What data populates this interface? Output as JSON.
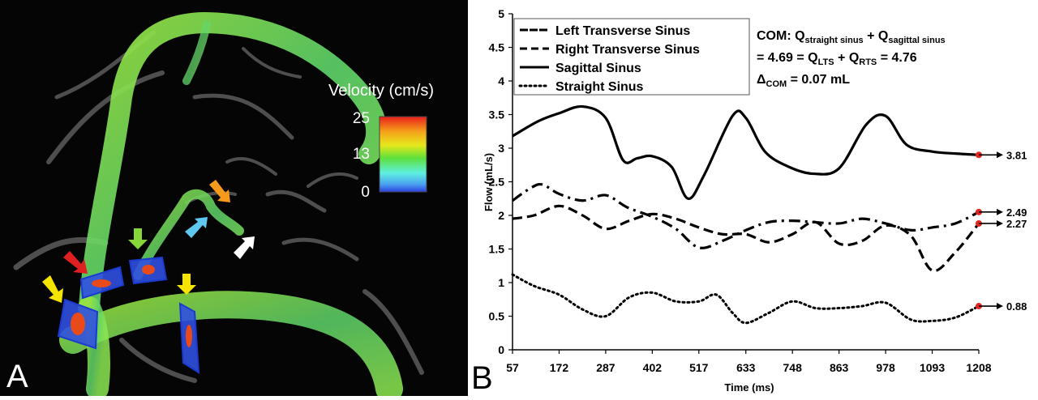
{
  "panel_a": {
    "label": "A",
    "legend_title": "Velocity (cm/s)",
    "legend_ticks": [
      "25",
      "13",
      "0"
    ],
    "arrow_colors": [
      "#f5e400",
      "#e02020",
      "#86d63a",
      "#5ec8f0",
      "#f59a1a",
      "#ffffff"
    ]
  },
  "panel_b": {
    "label": "B"
  },
  "chart_data": {
    "type": "line",
    "xlabel": "Time (ms)",
    "ylabel": "Flow (mL/s)",
    "ylim": [
      0,
      5
    ],
    "yticks": [
      "0",
      "0.5",
      "1",
      "1.5",
      "2",
      "2.5",
      "3",
      "3.5",
      "4",
      "4.5",
      "5"
    ],
    "x": [
      57,
      172,
      287,
      402,
      517,
      633,
      748,
      863,
      978,
      1093,
      1208
    ],
    "xtick_labels": [
      "57",
      "172",
      "287",
      "402",
      "517",
      "633",
      "748",
      "863",
      "978",
      "1093",
      "1208"
    ],
    "legend_placement": "top-left",
    "grid": false,
    "series": [
      {
        "name": "Left Transverse Sinus",
        "dash": "dashdot",
        "points": [
          [
            57,
            2.22
          ],
          [
            100,
            2.4
          ],
          [
            130,
            2.46
          ],
          [
            172,
            2.32
          ],
          [
            230,
            2.22
          ],
          [
            287,
            2.3
          ],
          [
            340,
            2.12
          ],
          [
            402,
            1.98
          ],
          [
            460,
            1.8
          ],
          [
            517,
            1.52
          ],
          [
            575,
            1.62
          ],
          [
            633,
            1.78
          ],
          [
            690,
            1.9
          ],
          [
            748,
            1.92
          ],
          [
            800,
            1.9
          ],
          [
            863,
            1.88
          ],
          [
            920,
            1.95
          ],
          [
            978,
            1.88
          ],
          [
            1040,
            1.78
          ],
          [
            1093,
            1.82
          ],
          [
            1150,
            1.88
          ],
          [
            1208,
            2.05
          ]
        ],
        "end_value": "2.49"
      },
      {
        "name": "Right Transverse Sinus",
        "dash": "dashed",
        "points": [
          [
            57,
            1.95
          ],
          [
            110,
            2.0
          ],
          [
            172,
            2.14
          ],
          [
            230,
            2.0
          ],
          [
            287,
            1.8
          ],
          [
            345,
            1.92
          ],
          [
            402,
            2.02
          ],
          [
            460,
            1.95
          ],
          [
            517,
            1.82
          ],
          [
            575,
            1.72
          ],
          [
            633,
            1.72
          ],
          [
            690,
            1.6
          ],
          [
            748,
            1.72
          ],
          [
            805,
            1.9
          ],
          [
            863,
            1.58
          ],
          [
            920,
            1.62
          ],
          [
            978,
            1.85
          ],
          [
            1040,
            1.7
          ],
          [
            1093,
            1.18
          ],
          [
            1150,
            1.45
          ],
          [
            1208,
            1.88
          ]
        ],
        "end_value": "2.27"
      },
      {
        "name": "Sagittal Sinus",
        "dash": "solid",
        "points": [
          [
            57,
            3.18
          ],
          [
            120,
            3.4
          ],
          [
            172,
            3.52
          ],
          [
            230,
            3.62
          ],
          [
            287,
            3.45
          ],
          [
            330,
            2.82
          ],
          [
            365,
            2.85
          ],
          [
            402,
            2.88
          ],
          [
            450,
            2.72
          ],
          [
            490,
            2.25
          ],
          [
            530,
            2.6
          ],
          [
            600,
            3.48
          ],
          [
            633,
            3.45
          ],
          [
            680,
            2.95
          ],
          [
            740,
            2.72
          ],
          [
            800,
            2.62
          ],
          [
            863,
            2.7
          ],
          [
            930,
            3.35
          ],
          [
            978,
            3.48
          ],
          [
            1030,
            3.05
          ],
          [
            1093,
            2.95
          ],
          [
            1150,
            2.92
          ],
          [
            1208,
            2.9
          ]
        ],
        "end_value": "3.81"
      },
      {
        "name": "Straight Sinus",
        "dash": "dotted",
        "points": [
          [
            57,
            1.12
          ],
          [
            110,
            0.95
          ],
          [
            172,
            0.82
          ],
          [
            230,
            0.6
          ],
          [
            287,
            0.5
          ],
          [
            345,
            0.78
          ],
          [
            402,
            0.85
          ],
          [
            460,
            0.72
          ],
          [
            517,
            0.72
          ],
          [
            560,
            0.82
          ],
          [
            600,
            0.55
          ],
          [
            633,
            0.4
          ],
          [
            690,
            0.55
          ],
          [
            748,
            0.72
          ],
          [
            805,
            0.62
          ],
          [
            863,
            0.62
          ],
          [
            920,
            0.65
          ],
          [
            978,
            0.7
          ],
          [
            1040,
            0.45
          ],
          [
            1093,
            0.43
          ],
          [
            1150,
            0.48
          ],
          [
            1208,
            0.65
          ]
        ],
        "end_value": "0.88"
      }
    ],
    "annotation": {
      "line1_prefix": "COM:  Q",
      "line1_sub1": "straight sinus",
      "line1_mid": " + Q",
      "line1_sub2": "sagittal sinus",
      "line2_prefix": "= 4.69 = Q",
      "line2_sub1": "LTS",
      "line2_mid": " + Q",
      "line2_sub2": "RTS",
      "line2_suffix": " = 4.76",
      "line3_delta": "Δ",
      "line3_sub": "COM",
      "line3_suffix": " = 0.07 mL"
    }
  }
}
